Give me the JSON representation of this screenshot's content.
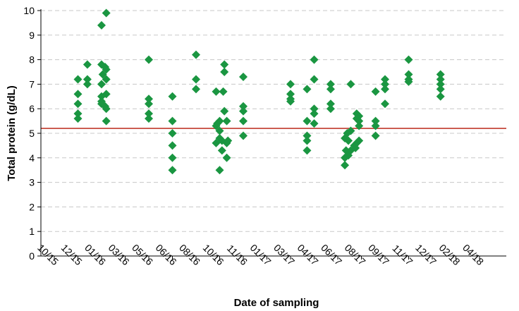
{
  "chart_data": {
    "type": "scatter",
    "title": "",
    "xlabel": "Date of sampling",
    "ylabel": "Total protein (g/dL)",
    "ylim": [
      0,
      10
    ],
    "yticks": [
      0,
      1,
      2,
      3,
      4,
      5,
      6,
      7,
      8,
      9,
      10
    ],
    "xticks": [
      "10/15",
      "12/15",
      "01/16",
      "03/16",
      "05/16",
      "06/16",
      "08/16",
      "10/16",
      "11/16",
      "01/17",
      "03/17",
      "04/17",
      "06/17",
      "08/17",
      "09/17",
      "11/17",
      "12/17",
      "02/18",
      "04/18"
    ],
    "grid": "horizontal dashed",
    "reference_line": {
      "value": 5.2,
      "color": "#c0392b"
    },
    "marker": {
      "shape": "diamond",
      "color": "#1a9641"
    },
    "points": [
      {
        "x": "12/15",
        "y": 7.2
      },
      {
        "x": "12/15",
        "y": 6.6
      },
      {
        "x": "12/15",
        "y": 6.2
      },
      {
        "x": "12/15",
        "y": 5.8
      },
      {
        "x": "12/15",
        "y": 5.6
      },
      {
        "x": "12/15",
        "y": 7.8,
        "dx": 0.4
      },
      {
        "x": "12/15",
        "y": 7.2,
        "dx": 0.4
      },
      {
        "x": "12/15",
        "y": 7.0,
        "dx": 0.4
      },
      {
        "x": "01/16",
        "y": 9.9,
        "dx": 0.2
      },
      {
        "x": "01/16",
        "y": 9.4
      },
      {
        "x": "01/16",
        "y": 7.8
      },
      {
        "x": "01/16",
        "y": 7.7,
        "dx": 0.15
      },
      {
        "x": "01/16",
        "y": 7.6,
        "dx": 0.2
      },
      {
        "x": "01/16",
        "y": 7.4,
        "dx": 0.05
      },
      {
        "x": "01/16",
        "y": 7.2,
        "dx": 0.2
      },
      {
        "x": "01/16",
        "y": 7.0
      },
      {
        "x": "01/16",
        "y": 6.6,
        "dx": 0.2
      },
      {
        "x": "01/16",
        "y": 6.5
      },
      {
        "x": "01/16",
        "y": 6.3
      },
      {
        "x": "01/16",
        "y": 6.2
      },
      {
        "x": "01/16",
        "y": 6.1,
        "dx": 0.15
      },
      {
        "x": "01/16",
        "y": 6.0,
        "dx": 0.2
      },
      {
        "x": "01/16",
        "y": 5.5,
        "dx": 0.2
      },
      {
        "x": "05/16",
        "y": 8.0
      },
      {
        "x": "05/16",
        "y": 6.4
      },
      {
        "x": "05/16",
        "y": 6.2
      },
      {
        "x": "05/16",
        "y": 5.8
      },
      {
        "x": "05/16",
        "y": 5.6
      },
      {
        "x": "06/16",
        "y": 6.5
      },
      {
        "x": "06/16",
        "y": 5.5
      },
      {
        "x": "06/16",
        "y": 5.0
      },
      {
        "x": "06/16",
        "y": 4.5
      },
      {
        "x": "06/16",
        "y": 4.0
      },
      {
        "x": "06/16",
        "y": 3.5
      },
      {
        "x": "08/16",
        "y": 8.2
      },
      {
        "x": "08/16",
        "y": 7.2
      },
      {
        "x": "08/16",
        "y": 6.8
      },
      {
        "x": "10/16",
        "y": 6.7,
        "dx": -0.15
      },
      {
        "x": "10/16",
        "y": 6.7,
        "dx": 0.15
      },
      {
        "x": "10/16",
        "y": 5.5
      },
      {
        "x": "10/16",
        "y": 5.4,
        "dx": -0.1
      },
      {
        "x": "10/16",
        "y": 5.3,
        "dx": -0.15
      },
      {
        "x": "10/16",
        "y": 5.1
      },
      {
        "x": "10/16",
        "y": 4.8
      },
      {
        "x": "10/16",
        "y": 4.7,
        "dx": 0.1
      },
      {
        "x": "10/16",
        "y": 4.6,
        "dx": -0.15
      },
      {
        "x": "10/16",
        "y": 4.3,
        "dx": 0.1
      },
      {
        "x": "10/16",
        "y": 3.5
      },
      {
        "x": "10/16",
        "y": 7.8,
        "dx": 0.2
      },
      {
        "x": "10/16",
        "y": 7.5,
        "dx": 0.2
      },
      {
        "x": "10/16",
        "y": 5.9,
        "dx": 0.2
      },
      {
        "x": "10/16",
        "y": 5.5,
        "dx": 0.3
      },
      {
        "x": "10/16",
        "y": 4.7,
        "dx": 0.35
      },
      {
        "x": "10/16",
        "y": 4.6,
        "dx": 0.3
      },
      {
        "x": "10/16",
        "y": 4.0,
        "dx": 0.3
      },
      {
        "x": "11/16",
        "y": 7.3
      },
      {
        "x": "11/16",
        "y": 6.1
      },
      {
        "x": "11/16",
        "y": 5.9
      },
      {
        "x": "11/16",
        "y": 5.5
      },
      {
        "x": "11/16",
        "y": 4.9
      },
      {
        "x": "03/17",
        "y": 7.0
      },
      {
        "x": "03/17",
        "y": 6.6
      },
      {
        "x": "03/17",
        "y": 6.4
      },
      {
        "x": "03/17",
        "y": 6.3
      },
      {
        "x": "03/17",
        "y": 6.8,
        "dx": 0.7
      },
      {
        "x": "03/17",
        "y": 5.5,
        "dx": 0.7
      },
      {
        "x": "03/17",
        "y": 4.9,
        "dx": 0.7
      },
      {
        "x": "03/17",
        "y": 4.7,
        "dx": 0.7
      },
      {
        "x": "03/17",
        "y": 4.3,
        "dx": 0.7
      },
      {
        "x": "04/17",
        "y": 8.0
      },
      {
        "x": "04/17",
        "y": 7.2
      },
      {
        "x": "04/17",
        "y": 6.0
      },
      {
        "x": "04/17",
        "y": 5.8
      },
      {
        "x": "04/17",
        "y": 5.4
      },
      {
        "x": "04/17",
        "y": 7.0,
        "dx": 0.7
      },
      {
        "x": "04/17",
        "y": 6.8,
        "dx": 0.7
      },
      {
        "x": "04/17",
        "y": 6.2,
        "dx": 0.7
      },
      {
        "x": "04/17",
        "y": 6.0,
        "dx": 0.7
      },
      {
        "x": "06/17",
        "y": 5.0,
        "dx": 0.4
      },
      {
        "x": "06/17",
        "y": 4.8,
        "dx": 0.3
      },
      {
        "x": "06/17",
        "y": 4.7,
        "dx": 0.45
      },
      {
        "x": "06/17",
        "y": 4.3,
        "dx": 0.35
      },
      {
        "x": "06/17",
        "y": 4.1,
        "dx": 0.45
      },
      {
        "x": "06/17",
        "y": 4.0,
        "dx": 0.3
      },
      {
        "x": "06/17",
        "y": 3.7,
        "dx": 0.3
      },
      {
        "x": "06/17",
        "y": 7.0,
        "dx": 0.55
      },
      {
        "x": "06/17",
        "y": 5.1,
        "dx": 0.55
      },
      {
        "x": "06/17",
        "y": 4.3,
        "dx": 0.55
      },
      {
        "x": "08/17",
        "y": 5.8,
        "dx": -0.2
      },
      {
        "x": "08/17",
        "y": 5.7,
        "dx": -0.1
      },
      {
        "x": "08/17",
        "y": 5.6,
        "dx": -0.2
      },
      {
        "x": "08/17",
        "y": 5.5,
        "dx": -0.1
      },
      {
        "x": "08/17",
        "y": 5.3,
        "dx": -0.1
      },
      {
        "x": "08/17",
        "y": 4.6,
        "dx": -0.2
      },
      {
        "x": "08/17",
        "y": 4.5,
        "dx": -0.3
      },
      {
        "x": "08/17",
        "y": 4.4,
        "dx": -0.25
      },
      {
        "x": "08/17",
        "y": 4.7,
        "dx": -0.1
      },
      {
        "x": "08/17",
        "y": 6.7,
        "dx": 0.6
      },
      {
        "x": "08/17",
        "y": 5.5,
        "dx": 0.6
      },
      {
        "x": "08/17",
        "y": 5.3,
        "dx": 0.6
      },
      {
        "x": "08/17",
        "y": 4.9,
        "dx": 0.6
      },
      {
        "x": "09/17",
        "y": 7.2
      },
      {
        "x": "09/17",
        "y": 7.0
      },
      {
        "x": "09/17",
        "y": 6.8
      },
      {
        "x": "09/17",
        "y": 6.2
      },
      {
        "x": "11/17",
        "y": 8.0
      },
      {
        "x": "11/17",
        "y": 7.4
      },
      {
        "x": "11/17",
        "y": 7.2
      },
      {
        "x": "11/17",
        "y": 7.1
      },
      {
        "x": "12/17",
        "y": 7.4,
        "dx": 0.35
      },
      {
        "x": "12/17",
        "y": 7.2,
        "dx": 0.35
      },
      {
        "x": "12/17",
        "y": 7.0,
        "dx": 0.35
      },
      {
        "x": "12/17",
        "y": 6.8,
        "dx": 0.35
      },
      {
        "x": "12/17",
        "y": 6.5,
        "dx": 0.35
      }
    ]
  }
}
